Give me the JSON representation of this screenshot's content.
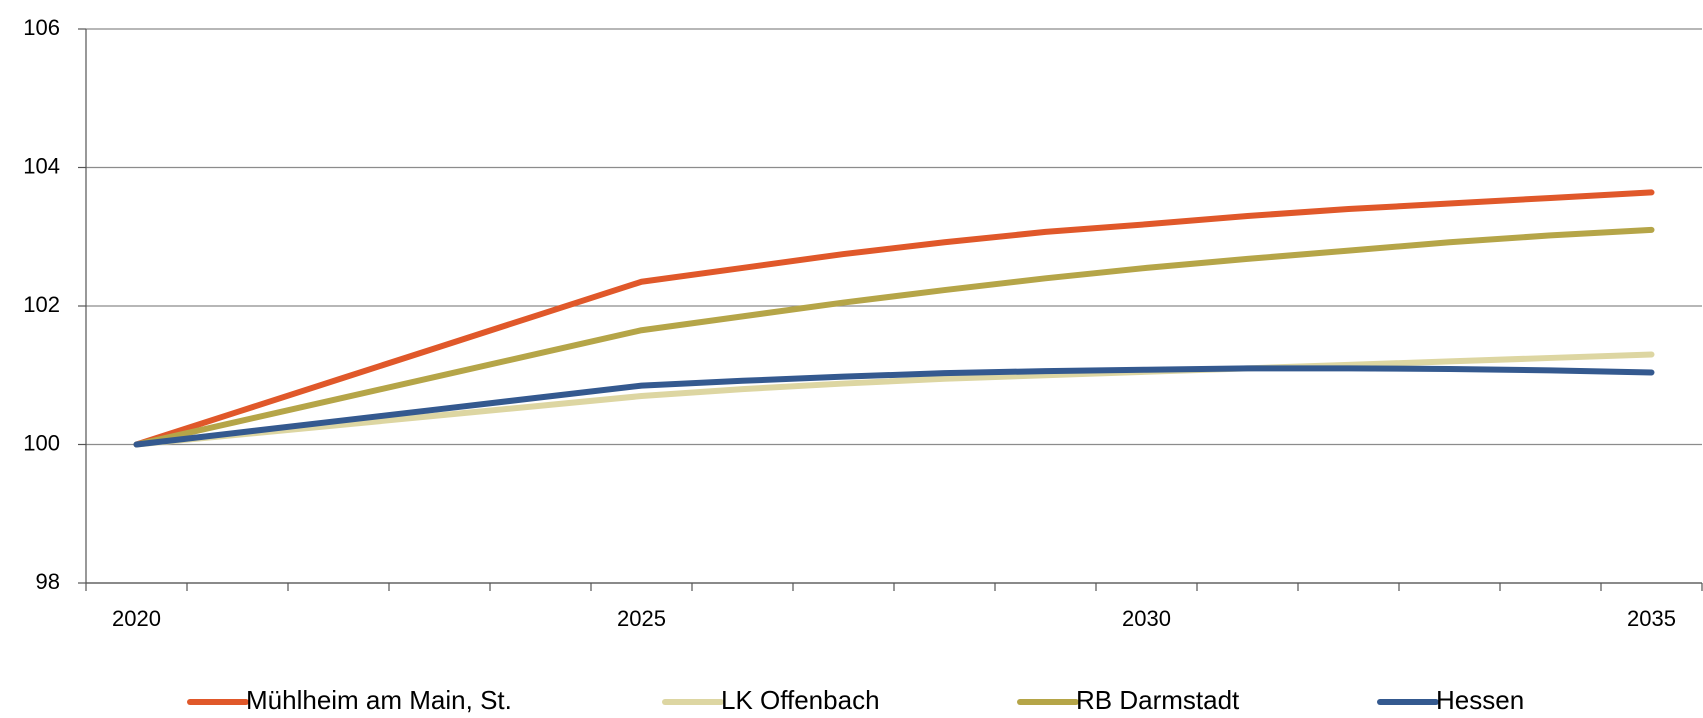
{
  "chart_data": {
    "type": "line",
    "categories": [
      "2020",
      null,
      null,
      null,
      null,
      "2025",
      null,
      null,
      null,
      null,
      "2030",
      null,
      null,
      null,
      null,
      "2035"
    ],
    "series": [
      {
        "name": "Mühlheim am Main, St.",
        "color": "#e0582a",
        "values": [
          100,
          100.47,
          100.94,
          101.41,
          101.88,
          102.35,
          102.55,
          102.75,
          102.92,
          103.07,
          103.18,
          103.3,
          103.4,
          103.48,
          103.56,
          103.64
        ]
      },
      {
        "name": "LK Offenbach",
        "color": "#ddd6a2",
        "values": [
          100,
          100.14,
          100.28,
          100.42,
          100.56,
          100.7,
          100.8,
          100.88,
          100.95,
          101.0,
          101.05,
          101.1,
          101.15,
          101.2,
          101.25,
          101.3
        ]
      },
      {
        "name": "RB Darmstadt",
        "color": "#b5a548",
        "values": [
          100,
          100.33,
          100.66,
          100.99,
          101.32,
          101.65,
          101.85,
          102.05,
          102.23,
          102.4,
          102.55,
          102.68,
          102.8,
          102.92,
          103.02,
          103.1
        ]
      },
      {
        "name": "Hessen",
        "color": "#34598f",
        "values": [
          100,
          100.17,
          100.34,
          100.51,
          100.68,
          100.85,
          100.92,
          100.98,
          101.03,
          101.06,
          101.08,
          101.1,
          101.1,
          101.09,
          101.07,
          101.04
        ]
      }
    ],
    "ylim": [
      98,
      106
    ],
    "yticks": [
      98,
      100,
      102,
      104,
      106
    ],
    "grid": true,
    "legend": "bottom"
  }
}
